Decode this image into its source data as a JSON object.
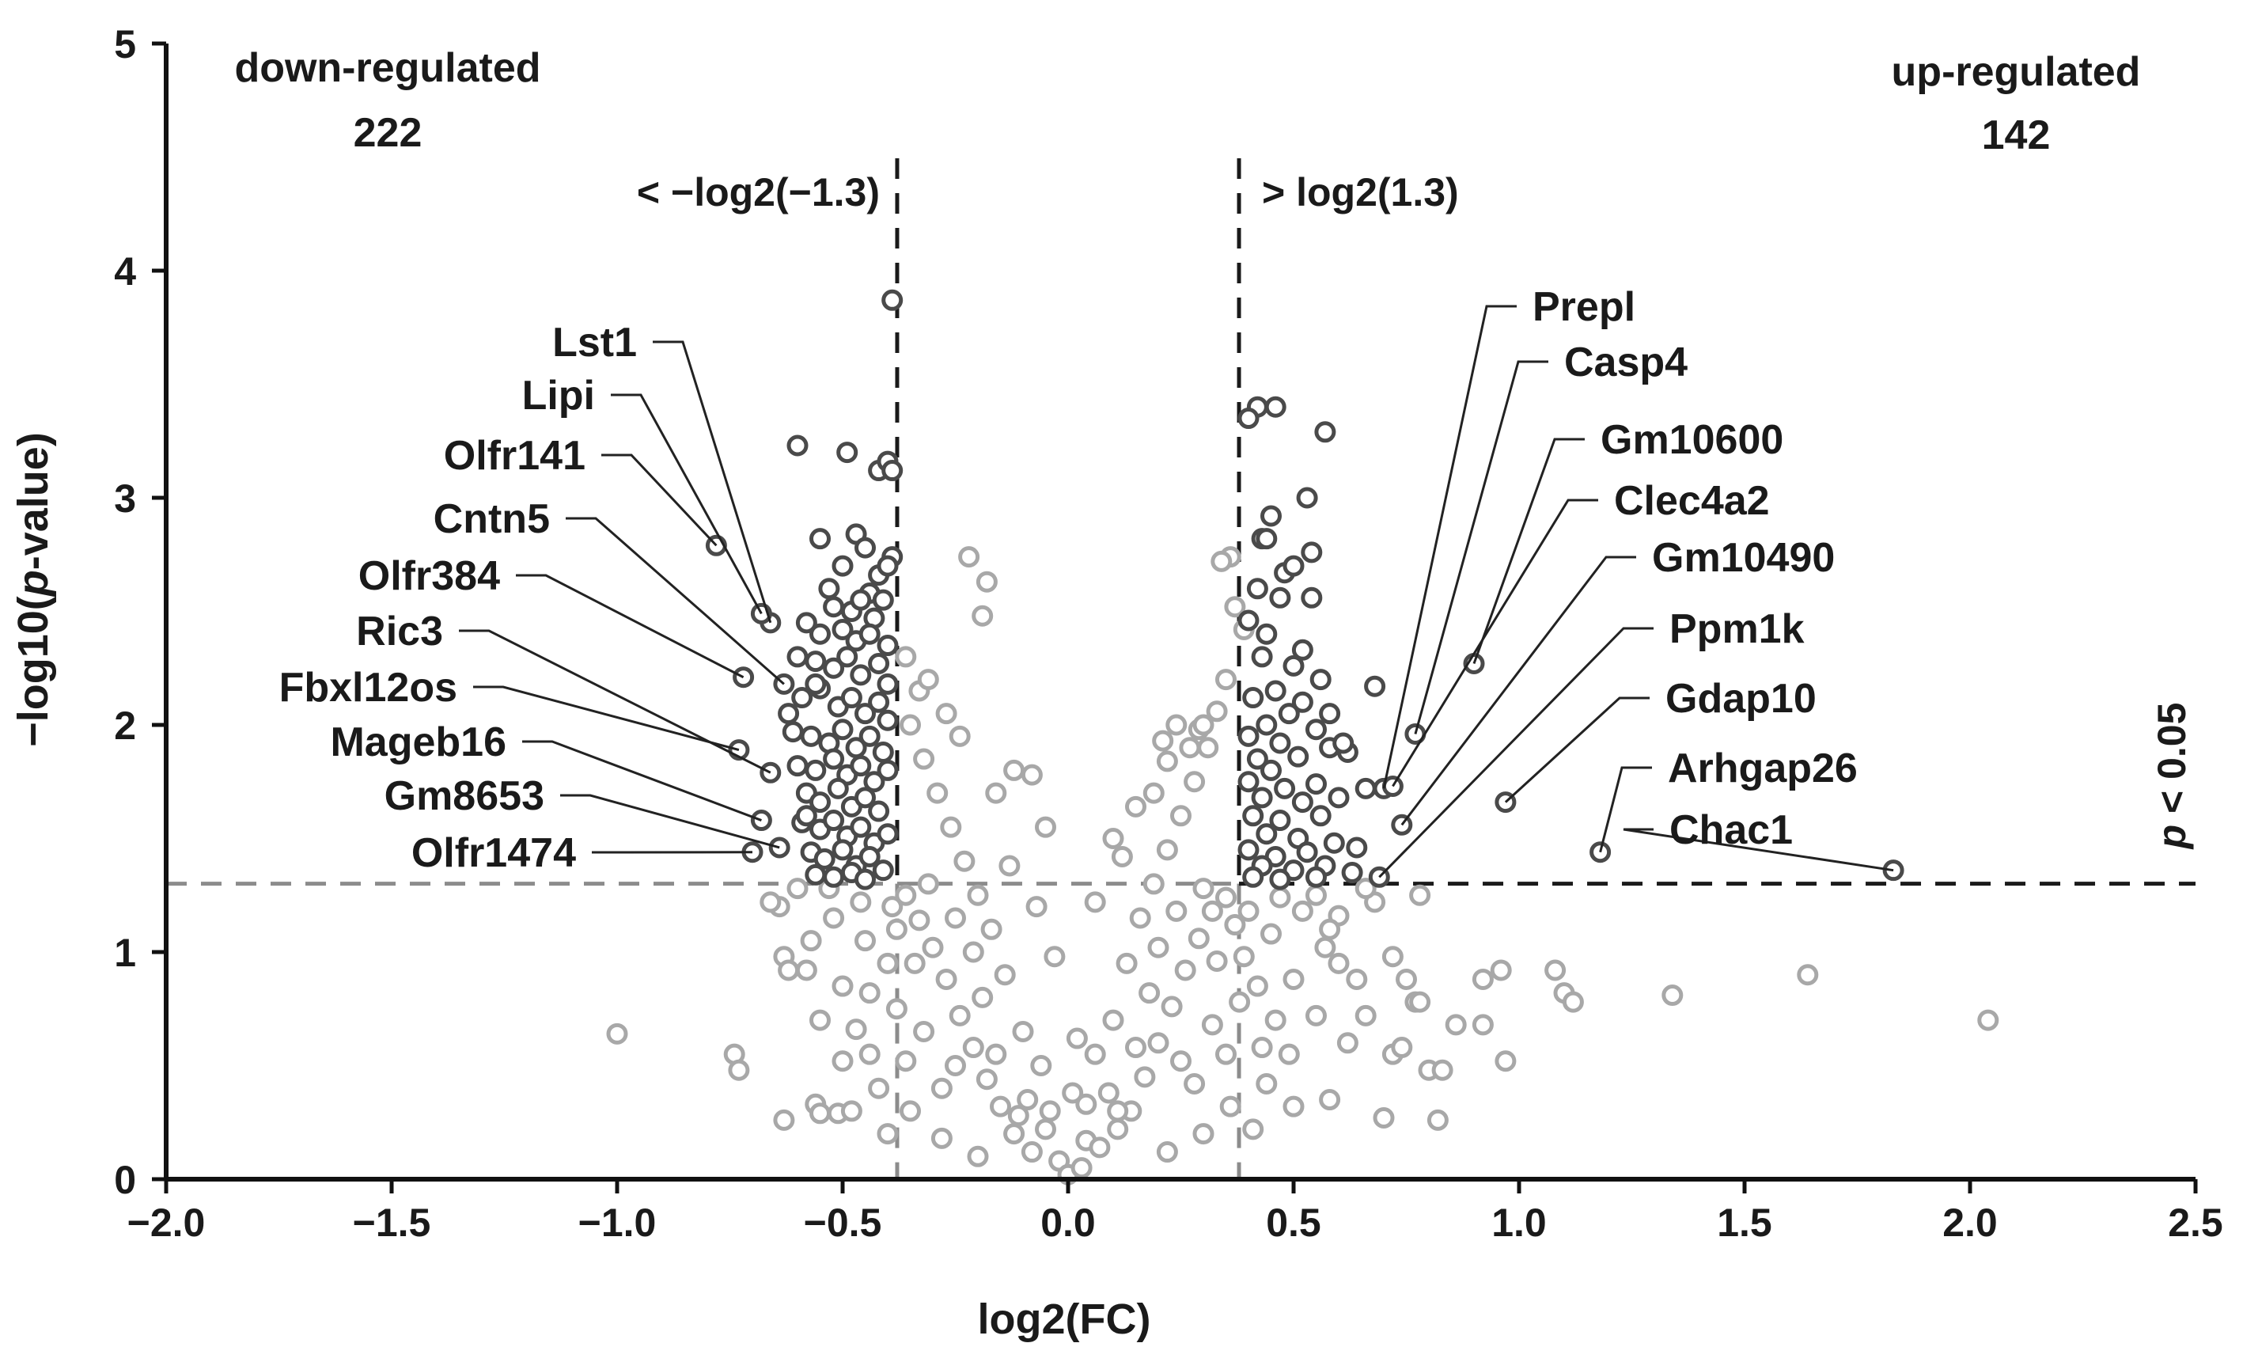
{
  "chart_data": {
    "type": "scatter",
    "title": "",
    "xlabel": "log2(FC)",
    "ylabel_parts": [
      "−log10(",
      "p",
      "-value)"
    ],
    "xlim": [
      -2.0,
      2.5
    ],
    "ylim": [
      0,
      5
    ],
    "x_ticks": [
      {
        "value": -2.0,
        "label": "−2.0"
      },
      {
        "value": -1.5,
        "label": "−1.5"
      },
      {
        "value": -1.0,
        "label": "−1.0"
      },
      {
        "value": -0.5,
        "label": "−0.5"
      },
      {
        "value": 0.0,
        "label": "0.0"
      },
      {
        "value": 0.5,
        "label": "0.5"
      },
      {
        "value": 1.0,
        "label": "1.0"
      },
      {
        "value": 1.5,
        "label": "1.5"
      },
      {
        "value": 2.0,
        "label": "2.0"
      },
      {
        "value": 2.5,
        "label": "2.5"
      }
    ],
    "y_ticks": [
      {
        "value": 0,
        "label": "0"
      },
      {
        "value": 1,
        "label": "1"
      },
      {
        "value": 2,
        "label": "2"
      },
      {
        "value": 3,
        "label": "3"
      },
      {
        "value": 4,
        "label": "4"
      },
      {
        "value": 5,
        "label": "5"
      }
    ],
    "thresholds": {
      "fc_low": -0.379,
      "fc_high": 0.379,
      "p_line": 1.301,
      "fc_low_label": "< −log2(−1.3)",
      "fc_high_label": "> log2(1.3)",
      "p_label_parts": [
        "p",
        " < 0.05"
      ]
    },
    "summary": {
      "down_label": "down-regulated",
      "down_count": "222",
      "up_label": "up-regulated",
      "up_count": "142"
    },
    "colors": {
      "significant": "#4a4a4a",
      "nonsignificant": "#a8a8a8",
      "axis": "#111111",
      "threshold_dark": "#1a1a1a",
      "threshold_gray": "#8c8c8c"
    },
    "labeled_genes": [
      {
        "name": "Lst1",
        "x": -0.66,
        "y": 2.45
      },
      {
        "name": "Lipi",
        "x": -0.68,
        "y": 2.49
      },
      {
        "name": "Olfr141",
        "x": -0.78,
        "y": 2.79
      },
      {
        "name": "Cntn5",
        "x": -0.63,
        "y": 2.18
      },
      {
        "name": "Olfr384",
        "x": -0.72,
        "y": 2.21
      },
      {
        "name": "Ric3",
        "x": -0.66,
        "y": 1.79
      },
      {
        "name": "Fbxl12os",
        "x": -0.73,
        "y": 1.89
      },
      {
        "name": "Mageb16",
        "x": -0.68,
        "y": 1.58
      },
      {
        "name": "Gm8653",
        "x": -0.64,
        "y": 1.46
      },
      {
        "name": "Olfr1474",
        "x": -0.7,
        "y": 1.44
      },
      {
        "name": "Prepl",
        "x": 0.7,
        "y": 1.72
      },
      {
        "name": "Casp4",
        "x": 0.77,
        "y": 1.96
      },
      {
        "name": "Gm10600",
        "x": 0.9,
        "y": 2.27
      },
      {
        "name": "Clec4a2",
        "x": 0.72,
        "y": 1.73
      },
      {
        "name": "Gm10490",
        "x": 0.74,
        "y": 1.56
      },
      {
        "name": "Ppm1k",
        "x": 0.69,
        "y": 1.33
      },
      {
        "name": "Gdap10",
        "x": 0.97,
        "y": 1.66
      },
      {
        "name": "Arhgap26",
        "x": 1.18,
        "y": 1.44
      },
      {
        "name": "Chac1",
        "x": 1.83,
        "y": 1.36
      }
    ],
    "significant_points": [
      [
        -0.6,
        3.23
      ],
      [
        -0.49,
        3.2
      ],
      [
        -0.42,
        3.12
      ],
      [
        -0.4,
        3.16
      ],
      [
        -0.39,
        3.12
      ],
      [
        -0.39,
        3.87
      ],
      [
        -0.55,
        2.82
      ],
      [
        -0.47,
        2.84
      ],
      [
        -0.45,
        2.78
      ],
      [
        -0.39,
        2.74
      ],
      [
        -0.5,
        2.7
      ],
      [
        -0.42,
        2.66
      ],
      [
        -0.4,
        2.7
      ],
      [
        -0.44,
        2.58
      ],
      [
        -0.52,
        2.52
      ],
      [
        -0.48,
        2.5
      ],
      [
        -0.46,
        2.55
      ],
      [
        -0.43,
        2.47
      ],
      [
        -0.41,
        2.55
      ],
      [
        -0.58,
        2.45
      ],
      [
        -0.55,
        2.4
      ],
      [
        -0.5,
        2.42
      ],
      [
        -0.47,
        2.37
      ],
      [
        -0.44,
        2.4
      ],
      [
        -0.4,
        2.35
      ],
      [
        -0.6,
        2.3
      ],
      [
        -0.56,
        2.28
      ],
      [
        -0.52,
        2.25
      ],
      [
        -0.49,
        2.3
      ],
      [
        -0.46,
        2.22
      ],
      [
        -0.42,
        2.27
      ],
      [
        -0.4,
        2.18
      ],
      [
        -0.59,
        2.12
      ],
      [
        -0.55,
        2.16
      ],
      [
        -0.51,
        2.08
      ],
      [
        -0.48,
        2.12
      ],
      [
        -0.45,
        2.05
      ],
      [
        -0.42,
        2.1
      ],
      [
        -0.4,
        2.02
      ],
      [
        -0.61,
        1.97
      ],
      [
        -0.57,
        1.95
      ],
      [
        -0.53,
        1.92
      ],
      [
        -0.5,
        1.98
      ],
      [
        -0.47,
        1.9
      ],
      [
        -0.44,
        1.95
      ],
      [
        -0.41,
        1.88
      ],
      [
        -0.6,
        1.82
      ],
      [
        -0.56,
        1.8
      ],
      [
        -0.52,
        1.85
      ],
      [
        -0.49,
        1.78
      ],
      [
        -0.46,
        1.82
      ],
      [
        -0.43,
        1.75
      ],
      [
        -0.4,
        1.8
      ],
      [
        -0.58,
        1.7
      ],
      [
        -0.55,
        1.66
      ],
      [
        -0.51,
        1.72
      ],
      [
        -0.48,
        1.64
      ],
      [
        -0.45,
        1.68
      ],
      [
        -0.42,
        1.62
      ],
      [
        -0.59,
        1.57
      ],
      [
        -0.55,
        1.54
      ],
      [
        -0.52,
        1.58
      ],
      [
        -0.49,
        1.51
      ],
      [
        -0.46,
        1.55
      ],
      [
        -0.43,
        1.48
      ],
      [
        -0.4,
        1.52
      ],
      [
        -0.57,
        1.44
      ],
      [
        -0.54,
        1.41
      ],
      [
        -0.5,
        1.45
      ],
      [
        -0.47,
        1.38
      ],
      [
        -0.44,
        1.42
      ],
      [
        -0.41,
        1.36
      ],
      [
        -0.56,
        1.34
      ],
      [
        -0.52,
        1.33
      ],
      [
        -0.48,
        1.35
      ],
      [
        -0.45,
        1.32
      ],
      [
        -0.53,
        2.6
      ],
      [
        -0.56,
        2.18
      ],
      [
        -0.62,
        2.05
      ],
      [
        -0.58,
        1.6
      ],
      [
        0.42,
        3.4
      ],
      [
        0.46,
        3.4
      ],
      [
        0.4,
        3.35
      ],
      [
        0.57,
        3.29
      ],
      [
        0.53,
        3.0
      ],
      [
        0.43,
        2.82
      ],
      [
        0.45,
        2.92
      ],
      [
        0.44,
        2.82
      ],
      [
        0.54,
        2.76
      ],
      [
        0.48,
        2.67
      ],
      [
        0.5,
        2.7
      ],
      [
        0.42,
        2.6
      ],
      [
        0.47,
        2.56
      ],
      [
        0.54,
        2.56
      ],
      [
        0.4,
        2.46
      ],
      [
        0.44,
        2.4
      ],
      [
        0.52,
        2.33
      ],
      [
        0.43,
        2.3
      ],
      [
        0.5,
        2.26
      ],
      [
        0.56,
        2.2
      ],
      [
        0.46,
        2.15
      ],
      [
        0.41,
        2.12
      ],
      [
        0.52,
        2.1
      ],
      [
        0.49,
        2.05
      ],
      [
        0.44,
        2.0
      ],
      [
        0.55,
        1.98
      ],
      [
        0.4,
        1.95
      ],
      [
        0.47,
        1.92
      ],
      [
        0.58,
        1.9
      ],
      [
        0.42,
        1.85
      ],
      [
        0.51,
        1.86
      ],
      [
        0.45,
        1.8
      ],
      [
        0.62,
        1.88
      ],
      [
        0.4,
        1.75
      ],
      [
        0.48,
        1.72
      ],
      [
        0.55,
        1.74
      ],
      [
        0.43,
        1.68
      ],
      [
        0.52,
        1.66
      ],
      [
        0.6,
        1.68
      ],
      [
        0.41,
        1.6
      ],
      [
        0.47,
        1.58
      ],
      [
        0.56,
        1.6
      ],
      [
        0.44,
        1.52
      ],
      [
        0.51,
        1.5
      ],
      [
        0.59,
        1.48
      ],
      [
        0.4,
        1.45
      ],
      [
        0.46,
        1.42
      ],
      [
        0.53,
        1.44
      ],
      [
        0.64,
        1.46
      ],
      [
        0.43,
        1.38
      ],
      [
        0.5,
        1.36
      ],
      [
        0.57,
        1.38
      ],
      [
        0.41,
        1.33
      ],
      [
        0.47,
        1.32
      ],
      [
        0.55,
        1.33
      ],
      [
        0.63,
        1.35
      ],
      [
        0.66,
        1.72
      ],
      [
        0.68,
        2.17
      ],
      [
        0.61,
        1.92
      ],
      [
        0.58,
        2.05
      ]
    ],
    "nonsignificant_points": [
      [
        -1.0,
        0.64
      ],
      [
        -0.74,
        0.55
      ],
      [
        -0.73,
        0.48
      ],
      [
        -0.63,
        0.26
      ],
      [
        -0.63,
        0.98
      ],
      [
        -0.62,
        0.92
      ],
      [
        -0.64,
        1.2
      ],
      [
        -0.56,
        0.33
      ],
      [
        -0.55,
        0.29
      ],
      [
        -0.51,
        0.29
      ],
      [
        -0.22,
        2.74
      ],
      [
        -0.18,
        2.63
      ],
      [
        -0.19,
        2.48
      ],
      [
        -0.12,
        1.8
      ],
      [
        -0.08,
        1.78
      ],
      [
        -0.05,
        1.55
      ],
      [
        0.36,
        2.74
      ],
      [
        0.34,
        2.72
      ],
      [
        0.37,
        2.52
      ],
      [
        0.39,
        2.42
      ],
      [
        0.35,
        2.2
      ],
      [
        0.33,
        2.06
      ],
      [
        0.29,
        1.98
      ],
      [
        0.22,
        1.84
      ],
      [
        0.19,
        1.7
      ],
      [
        0.15,
        1.64
      ],
      [
        0.1,
        1.5
      ],
      [
        0.55,
        1.25
      ],
      [
        0.6,
        1.16
      ],
      [
        0.68,
        1.22
      ],
      [
        0.78,
        1.25
      ],
      [
        0.72,
        0.98
      ],
      [
        0.75,
        0.88
      ],
      [
        0.77,
        0.78
      ],
      [
        0.78,
        0.78
      ],
      [
        0.72,
        0.55
      ],
      [
        0.74,
        0.58
      ],
      [
        0.8,
        0.48
      ],
      [
        0.83,
        0.48
      ],
      [
        0.86,
        0.68
      ],
      [
        0.92,
        0.68
      ],
      [
        0.92,
        0.88
      ],
      [
        0.96,
        0.92
      ],
      [
        0.97,
        0.52
      ],
      [
        1.08,
        0.92
      ],
      [
        1.1,
        0.82
      ],
      [
        1.12,
        0.78
      ],
      [
        1.34,
        0.81
      ],
      [
        1.64,
        0.9
      ],
      [
        2.04,
        0.7
      ],
      [
        0.7,
        0.27
      ],
      [
        0.82,
        0.26
      ],
      [
        0.66,
        0.72
      ],
      [
        0.62,
        0.6
      ],
      [
        0.58,
        0.35
      ],
      [
        -0.03,
        0.98
      ],
      [
        0.01,
        0.38
      ],
      [
        0.02,
        0.62
      ],
      [
        -0.05,
        0.22
      ],
      [
        0.04,
        0.17
      ],
      [
        -0.02,
        0.08
      ],
      [
        0.0,
        0.02
      ],
      [
        0.03,
        0.05
      ],
      [
        -0.08,
        0.12
      ],
      [
        0.07,
        0.14
      ],
      [
        -0.12,
        0.2
      ],
      [
        0.11,
        0.22
      ],
      [
        -0.15,
        0.32
      ],
      [
        0.14,
        0.3
      ],
      [
        -0.18,
        0.44
      ],
      [
        0.17,
        0.45
      ],
      [
        -0.21,
        0.58
      ],
      [
        0.2,
        0.6
      ],
      [
        -0.24,
        0.72
      ],
      [
        0.23,
        0.76
      ],
      [
        -0.27,
        0.88
      ],
      [
        0.26,
        0.92
      ],
      [
        -0.3,
        1.02
      ],
      [
        0.29,
        1.06
      ],
      [
        -0.33,
        1.14
      ],
      [
        0.32,
        1.18
      ],
      [
        -0.36,
        1.25
      ],
      [
        0.35,
        1.24
      ],
      [
        -0.38,
        1.1
      ],
      [
        0.37,
        1.12
      ],
      [
        -0.4,
        0.95
      ],
      [
        0.39,
        0.98
      ],
      [
        -0.44,
        0.82
      ],
      [
        0.42,
        0.85
      ],
      [
        -0.47,
        0.66
      ],
      [
        0.46,
        0.7
      ],
      [
        -0.5,
        0.52
      ],
      [
        0.49,
        0.55
      ],
      [
        -0.42,
        0.4
      ],
      [
        0.44,
        0.42
      ],
      [
        -0.35,
        0.3
      ],
      [
        0.36,
        0.32
      ],
      [
        -0.28,
        0.18
      ],
      [
        0.3,
        0.2
      ],
      [
        -0.2,
        0.1
      ],
      [
        0.22,
        0.12
      ],
      [
        -0.6,
        1.28
      ],
      [
        0.66,
        1.28
      ],
      [
        -0.1,
        0.65
      ],
      [
        0.1,
        0.7
      ],
      [
        -0.14,
        0.9
      ],
      [
        0.13,
        0.95
      ],
      [
        -0.17,
        1.1
      ],
      [
        0.16,
        1.15
      ],
      [
        -0.2,
        1.25
      ],
      [
        0.19,
        1.3
      ],
      [
        -0.23,
        1.4
      ],
      [
        0.22,
        1.45
      ],
      [
        -0.26,
        1.55
      ],
      [
        0.25,
        1.6
      ],
      [
        -0.29,
        1.7
      ],
      [
        0.28,
        1.75
      ],
      [
        -0.32,
        1.85
      ],
      [
        0.31,
        1.9
      ],
      [
        -0.35,
        2.0
      ],
      [
        -0.33,
        2.15
      ],
      [
        -0.36,
        2.3
      ],
      [
        0.3,
        2.0
      ],
      [
        0.27,
        1.9
      ],
      [
        -0.27,
        2.05
      ],
      [
        -0.31,
        2.2
      ],
      [
        0.24,
        2.0
      ],
      [
        0.21,
        1.93
      ],
      [
        -0.24,
        1.95
      ],
      [
        -0.16,
        1.7
      ],
      [
        -0.06,
        0.5
      ],
      [
        0.06,
        0.55
      ],
      [
        -0.09,
        0.35
      ],
      [
        0.09,
        0.38
      ],
      [
        -0.25,
        0.5
      ],
      [
        0.25,
        0.52
      ],
      [
        -0.32,
        0.65
      ],
      [
        0.32,
        0.68
      ],
      [
        -0.38,
        0.75
      ],
      [
        0.38,
        0.78
      ],
      [
        -0.45,
        1.05
      ],
      [
        0.45,
        1.08
      ],
      [
        -0.52,
        1.15
      ],
      [
        0.52,
        1.18
      ],
      [
        -0.55,
        0.7
      ],
      [
        0.55,
        0.72
      ],
      [
        -0.48,
        0.3
      ],
      [
        0.5,
        0.32
      ],
      [
        -0.58,
        0.92
      ],
      [
        0.6,
        0.95
      ],
      [
        -0.66,
        1.22
      ],
      [
        0.64,
        0.88
      ],
      [
        -0.53,
        1.28
      ],
      [
        0.57,
        1.02
      ],
      [
        -0.36,
        0.52
      ],
      [
        0.35,
        0.55
      ],
      [
        -0.4,
        0.2
      ],
      [
        0.41,
        0.22
      ],
      [
        -0.13,
        1.38
      ],
      [
        0.12,
        1.42
      ],
      [
        -0.07,
        1.2
      ],
      [
        0.06,
        1.22
      ],
      [
        -0.19,
        0.8
      ],
      [
        0.18,
        0.82
      ],
      [
        -0.34,
        0.95
      ],
      [
        0.33,
        0.96
      ],
      [
        -0.39,
        1.2
      ],
      [
        0.4,
        1.18
      ],
      [
        -0.46,
        1.22
      ],
      [
        0.47,
        1.24
      ],
      [
        -0.31,
        1.3
      ],
      [
        0.3,
        1.28
      ],
      [
        -0.25,
        1.15
      ],
      [
        0.24,
        1.18
      ],
      [
        -0.21,
        1.0
      ],
      [
        0.2,
        1.02
      ],
      [
        -0.16,
        0.55
      ],
      [
        0.15,
        0.58
      ],
      [
        -0.28,
        0.4
      ],
      [
        0.28,
        0.42
      ],
      [
        -0.44,
        0.55
      ],
      [
        0.43,
        0.58
      ],
      [
        -0.5,
        0.85
      ],
      [
        0.5,
        0.88
      ],
      [
        -0.57,
        1.05
      ],
      [
        0.58,
        1.1
      ],
      [
        -0.11,
        0.28
      ],
      [
        0.11,
        0.3
      ],
      [
        -0.04,
        0.3
      ],
      [
        0.04,
        0.33
      ]
    ]
  }
}
